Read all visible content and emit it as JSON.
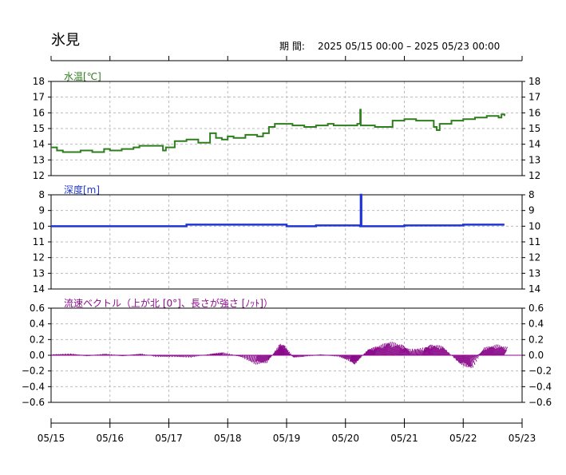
{
  "station": "氷見",
  "period_label": "期 間:",
  "period_value": "2025 05/15 00:00 – 2025 05/23 00:00",
  "colors": {
    "temperature": "#2e7d1e",
    "depth": "#1f36d6",
    "current": "#8b0a8b",
    "grid": "#bbbbbb",
    "axis": "#000000"
  },
  "chart_data": [
    {
      "type": "line",
      "title": "水温[℃]",
      "ylim": [
        12,
        18
      ],
      "yticks": [
        "18",
        "17",
        "16",
        "15",
        "14",
        "13",
        "12"
      ],
      "xticks": [
        "05/15",
        "05/16",
        "05/17",
        "05/18",
        "05/19",
        "05/20",
        "05/21",
        "05/22",
        "05/23"
      ],
      "grid": true,
      "series": [
        {
          "x": [
            0,
            0.1,
            0.2,
            0.3,
            0.5,
            0.7,
            0.9,
            1.0,
            1.2,
            1.4,
            1.5,
            1.7,
            1.9,
            1.95,
            2.1,
            2.3,
            2.5,
            2.7,
            2.8,
            2.9,
            3.0,
            3.1,
            3.3,
            3.5,
            3.6,
            3.7,
            3.8,
            3.9,
            4.0,
            4.1,
            4.3,
            4.5,
            4.7,
            4.8,
            5.0,
            5.2,
            5.25,
            5.26,
            5.3,
            5.5,
            5.7,
            5.8,
            6.0,
            6.2,
            6.3,
            6.5,
            6.55,
            6.6,
            6.8,
            7.0,
            7.2,
            7.4,
            7.6,
            7.65,
            7.7
          ],
          "y": [
            13.8,
            13.6,
            13.5,
            13.5,
            13.6,
            13.5,
            13.7,
            13.6,
            13.7,
            13.8,
            13.9,
            13.9,
            13.6,
            13.8,
            14.2,
            14.3,
            14.1,
            14.7,
            14.4,
            14.3,
            14.5,
            14.4,
            14.6,
            14.5,
            14.7,
            15.1,
            15.3,
            15.3,
            15.3,
            15.2,
            15.1,
            15.2,
            15.3,
            15.2,
            15.2,
            15.3,
            16.2,
            15.2,
            15.2,
            15.1,
            15.1,
            15.5,
            15.6,
            15.5,
            15.5,
            15.1,
            14.9,
            15.3,
            15.5,
            15.6,
            15.7,
            15.8,
            15.7,
            15.9,
            15.8
          ]
        }
      ]
    },
    {
      "type": "line",
      "title": "深度[m]",
      "ylim": [
        8,
        14
      ],
      "inverted": true,
      "yticks": [
        "8",
        "9",
        "10",
        "11",
        "12",
        "13",
        "14"
      ],
      "xticks": [
        "05/15",
        "05/16",
        "05/17",
        "05/18",
        "05/19",
        "05/20",
        "05/21",
        "05/22",
        "05/23"
      ],
      "grid": true,
      "series": [
        {
          "x": [
            0,
            1.0,
            2.0,
            2.3,
            2.6,
            3.0,
            4.0,
            4.5,
            5.0,
            5.25,
            5.26,
            5.27,
            6.0,
            7.0,
            7.7
          ],
          "y": [
            10.0,
            10.0,
            10.0,
            9.9,
            9.9,
            9.9,
            10.0,
            9.95,
            9.95,
            10.0,
            8.0,
            10.0,
            9.95,
            9.9,
            9.9
          ]
        }
      ]
    },
    {
      "type": "vector",
      "title": "流速ベクトル（上が北 [0°]、長さが強さ [ﾉｯﾄ]）",
      "ylim": [
        -0.6,
        0.6
      ],
      "yticks": [
        "0.6",
        "0.4",
        "0.2",
        "0.0",
        "−0.2",
        "−0.4",
        "−0.6"
      ],
      "xticks": [
        "05/15",
        "05/16",
        "05/17",
        "05/18",
        "05/19",
        "05/20",
        "05/21",
        "05/22",
        "05/23"
      ],
      "grid": true,
      "series": [
        {
          "x": [
            0,
            0.3,
            0.6,
            0.9,
            1.2,
            1.5,
            1.8,
            2.1,
            2.4,
            2.7,
            2.9,
            3.2,
            3.5,
            3.7,
            3.85,
            3.95,
            4.1,
            4.3,
            4.6,
            4.9,
            5.1,
            5.2,
            5.35,
            5.5,
            5.7,
            5.9,
            6.1,
            6.3,
            6.5,
            6.7,
            6.9,
            7.1,
            7.3,
            7.5,
            7.7
          ],
          "u": [
            0.02,
            0.03,
            0.02,
            0.02,
            0.02,
            0.03,
            -0.02,
            -0.02,
            -0.02,
            0.03,
            0.02,
            0.02,
            -0.03,
            -0.03,
            0.03,
            0.02,
            0.02,
            -0.01,
            -0.02,
            -0.01,
            -0.02,
            -0.03,
            0.03,
            0.04,
            0.04,
            0.04,
            -0.02,
            0.04,
            -0.03,
            -0.04,
            0.04,
            0.04,
            0.05,
            0.06,
            0.06
          ],
          "v": [
            0.01,
            0.02,
            -0.01,
            0.02,
            -0.01,
            0.02,
            -0.02,
            -0.02,
            -0.03,
            0.02,
            0.04,
            -0.02,
            -0.12,
            -0.1,
            0.15,
            0.12,
            -0.03,
            -0.02,
            0.01,
            -0.02,
            -0.08,
            -0.12,
            0.08,
            0.12,
            0.18,
            0.14,
            0.08,
            0.1,
            0.14,
            0.12,
            -0.12,
            -0.18,
            0.1,
            0.14,
            0.1
          ]
        }
      ]
    }
  ]
}
